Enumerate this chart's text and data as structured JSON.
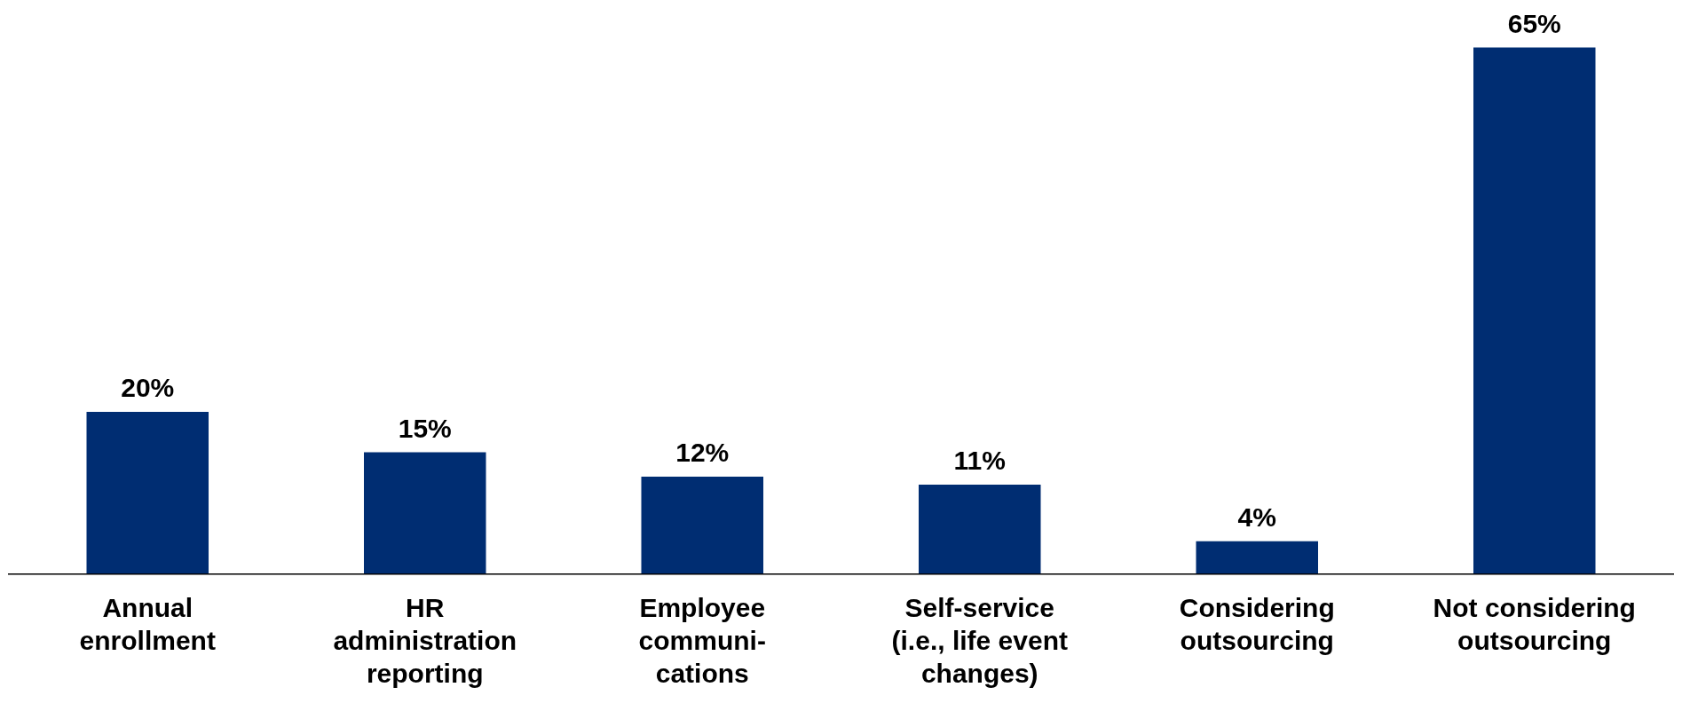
{
  "chart_data": {
    "type": "bar",
    "categories": [
      "Annual\nenrollment",
      "HR\nadministration\nreporting",
      "Employee\ncommuni-\ncations",
      "Self-service\n(i.e., life event\nchanges)",
      "Considering\noutsourcing",
      "Not considering\noutsourcing"
    ],
    "values": [
      20,
      15,
      12,
      11,
      4,
      65
    ],
    "value_labels": [
      "20%",
      "15%",
      "12%",
      "11%",
      "4%",
      "65%"
    ],
    "color": "#002d72",
    "tick_labels": "x",
    "grid": false,
    "legend": false
  }
}
